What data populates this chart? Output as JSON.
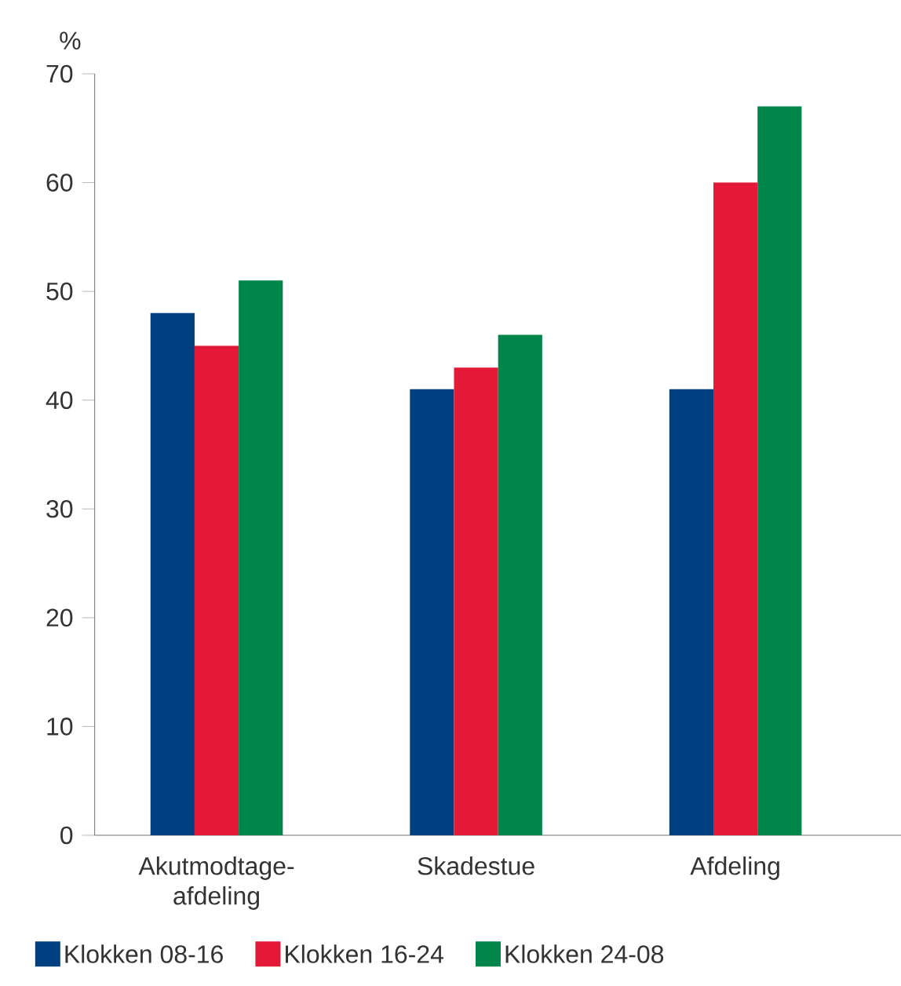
{
  "chart_data": {
    "type": "bar",
    "ylabel": "%",
    "categories": [
      "Akutmodtage-afdeling",
      "Skadestue",
      "Afdeling"
    ],
    "series": [
      {
        "name": "Klokken 08-16",
        "color": "#003f80",
        "values": [
          48,
          41,
          41
        ]
      },
      {
        "name": "Klokken 16-24",
        "color": "#e31937",
        "values": [
          45,
          43,
          60
        ]
      },
      {
        "name": "Klokken 24-08",
        "color": "#00854a",
        "values": [
          51,
          46,
          67
        ]
      }
    ],
    "ylim": [
      0,
      70
    ],
    "yticks": [
      0,
      10,
      20,
      30,
      40,
      50,
      60,
      70
    ],
    "legend": "bottom"
  }
}
